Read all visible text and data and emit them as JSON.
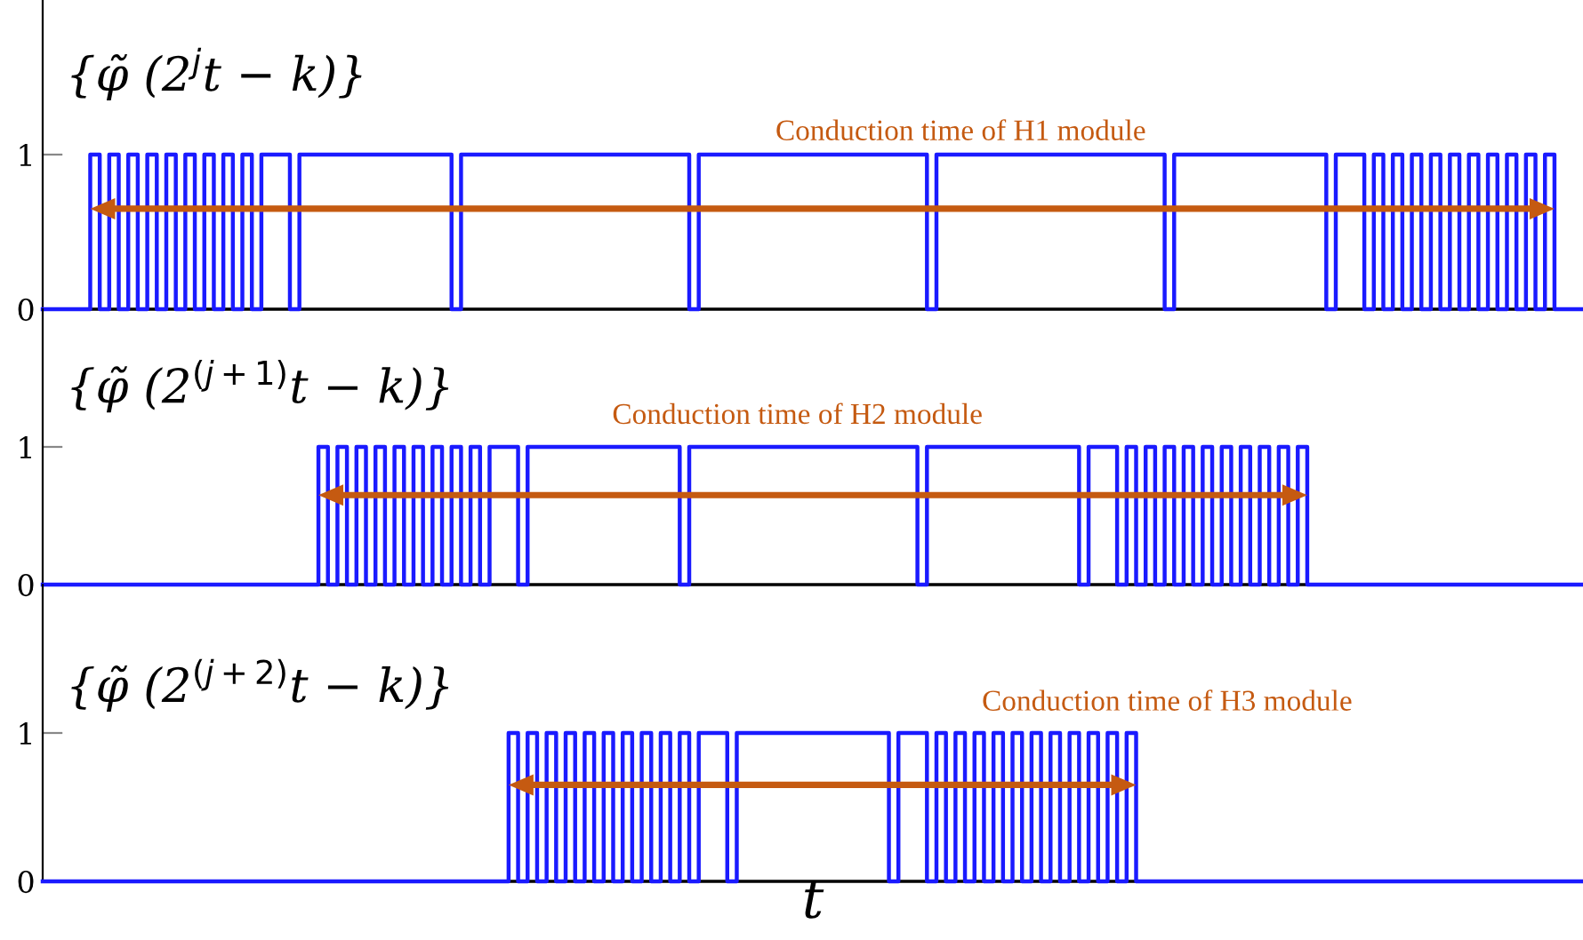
{
  "chart_data": [
    {
      "type": "step",
      "ylim": [
        0,
        2
      ],
      "yticks": [
        0,
        1
      ],
      "tick_labels": "y",
      "grid": false,
      "annotations": [
        "{φ̃ (2$^{j}$t − k)}",
        "Conduction time of H1 module"
      ],
      "categories": [
        null,
        null,
        null,
        null,
        null,
        null,
        null,
        null,
        null,
        null,
        null,
        null,
        null,
        null,
        null,
        null,
        null,
        null,
        null,
        null,
        null,
        null,
        null,
        null,
        null,
        null,
        null,
        null,
        null,
        null,
        null,
        null,
        null,
        null,
        null,
        null,
        null,
        null,
        null,
        null,
        null,
        null,
        null,
        null,
        null,
        null,
        null,
        null,
        null,
        null,
        null,
        null,
        null,
        null,
        null,
        null,
        null,
        null,
        null,
        null,
        null,
        null,
        null,
        null,
        null,
        null,
        null,
        null,
        null,
        null,
        null,
        null,
        null,
        null,
        null,
        null,
        null,
        null,
        null,
        null,
        null,
        null,
        null,
        null,
        null,
        null,
        null,
        null,
        null,
        null,
        null,
        null,
        null,
        null,
        null,
        null,
        null,
        null,
        null,
        null,
        null,
        null,
        null,
        null,
        null,
        null,
        null,
        null,
        null,
        null,
        null,
        null,
        null,
        null,
        null,
        null,
        null,
        null,
        null,
        null,
        null,
        null,
        null,
        null,
        null,
        null,
        null,
        null,
        null,
        null,
        null,
        null,
        null,
        null,
        null,
        null,
        null,
        null,
        null,
        null,
        null,
        null,
        null,
        null,
        null,
        null,
        null,
        null,
        null,
        null,
        null,
        null,
        null,
        null,
        null,
        null,
        null,
        null,
        null,
        null,
        null,
        null,
        null
      ],
      "series": [
        {
          "color": "#1a1aff",
          "values": [
            0,
            0,
            0,
            0,
            0,
            1,
            0,
            1,
            0,
            1,
            0,
            1,
            0,
            1,
            0,
            1,
            0,
            1,
            0,
            1,
            0,
            1,
            0,
            1,
            1,
            1,
            0,
            1,
            1,
            1,
            1,
            1,
            1,
            1,
            1,
            1,
            1,
            1,
            1,
            1,
            1,
            1,
            1,
            0,
            1,
            1,
            1,
            1,
            1,
            1,
            1,
            1,
            1,
            1,
            1,
            1,
            1,
            1,
            1,
            1,
            1,
            1,
            1,
            1,
            1,
            1,
            1,
            1,
            0,
            1,
            1,
            1,
            1,
            1,
            1,
            1,
            1,
            1,
            1,
            1,
            1,
            1,
            1,
            1,
            1,
            1,
            1,
            1,
            1,
            1,
            1,
            1,
            1,
            0,
            1,
            1,
            1,
            1,
            1,
            1,
            1,
            1,
            1,
            1,
            1,
            1,
            1,
            1,
            1,
            1,
            1,
            1,
            1,
            1,
            1,
            1,
            1,
            1,
            0,
            1,
            1,
            1,
            1,
            1,
            1,
            1,
            1,
            1,
            1,
            1,
            1,
            1,
            1,
            1,
            1,
            0,
            1,
            1,
            1,
            0,
            1,
            0,
            1,
            0,
            1,
            0,
            1,
            0,
            1,
            0,
            1,
            0,
            1,
            0,
            1,
            0,
            1,
            0,
            1,
            0,
            0,
            0,
            0
          ]
        }
      ]
    },
    {
      "type": "step",
      "ylim": [
        0,
        2
      ],
      "yticks": [
        0,
        1
      ],
      "tick_labels": "y",
      "grid": false,
      "annotations": [
        "{φ̃ (2$^{(j+1)}$t − k)}",
        "Conduction time of H2 module"
      ],
      "categories": [
        null,
        null,
        null,
        null,
        null,
        null,
        null,
        null,
        null,
        null,
        null,
        null,
        null,
        null,
        null,
        null,
        null,
        null,
        null,
        null,
        null,
        null,
        null,
        null,
        null,
        null,
        null,
        null,
        null,
        null,
        null,
        null,
        null,
        null,
        null,
        null,
        null,
        null,
        null,
        null,
        null,
        null,
        null,
        null,
        null,
        null,
        null,
        null,
        null,
        null,
        null,
        null,
        null,
        null,
        null,
        null,
        null,
        null,
        null,
        null,
        null,
        null,
        null,
        null,
        null,
        null,
        null,
        null,
        null,
        null,
        null,
        null,
        null,
        null,
        null,
        null,
        null,
        null,
        null,
        null,
        null,
        null,
        null,
        null,
        null,
        null,
        null,
        null,
        null,
        null,
        null,
        null,
        null,
        null,
        null,
        null,
        null,
        null,
        null,
        null,
        null,
        null,
        null,
        null,
        null,
        null,
        null,
        null,
        null,
        null,
        null,
        null,
        null,
        null,
        null,
        null,
        null,
        null,
        null,
        null,
        null,
        null,
        null,
        null,
        null,
        null,
        null,
        null,
        null,
        null,
        null,
        null,
        null,
        null,
        null,
        null,
        null,
        null,
        null,
        null,
        null,
        null,
        null,
        null,
        null,
        null,
        null,
        null,
        null,
        null,
        null,
        null,
        null,
        null,
        null,
        null,
        null,
        null,
        null,
        null,
        null,
        null,
        null
      ],
      "series": [
        {
          "color": "#1a1aff",
          "values": [
            0,
            0,
            0,
            0,
            0,
            0,
            0,
            0,
            0,
            0,
            0,
            0,
            0,
            0,
            0,
            0,
            0,
            0,
            0,
            0,
            0,
            0,
            0,
            0,
            0,
            0,
            0,
            0,
            0,
            1,
            0,
            1,
            0,
            1,
            0,
            1,
            0,
            1,
            0,
            1,
            0,
            1,
            0,
            1,
            0,
            1,
            0,
            1,
            1,
            1,
            0,
            1,
            1,
            1,
            1,
            1,
            1,
            1,
            1,
            1,
            1,
            1,
            1,
            1,
            1,
            1,
            1,
            0,
            1,
            1,
            1,
            1,
            1,
            1,
            1,
            1,
            1,
            1,
            1,
            1,
            1,
            1,
            1,
            1,
            1,
            1,
            1,
            1,
            1,
            1,
            1,
            1,
            0,
            1,
            1,
            1,
            1,
            1,
            1,
            1,
            1,
            1,
            1,
            1,
            1,
            1,
            1,
            1,
            1,
            0,
            1,
            1,
            1,
            0,
            1,
            0,
            1,
            0,
            1,
            0,
            1,
            0,
            1,
            0,
            1,
            0,
            1,
            0,
            1,
            0,
            1,
            0,
            1,
            0,
            0,
            0,
            0,
            0,
            0,
            0,
            0,
            0,
            0,
            0,
            0,
            0,
            0,
            0,
            0,
            0,
            0,
            0,
            0,
            0,
            0,
            0,
            0,
            0,
            0,
            0,
            0,
            0,
            0
          ]
        }
      ]
    },
    {
      "type": "step",
      "ylim": [
        0,
        2
      ],
      "yticks": [
        0,
        1
      ],
      "tick_labels": "y",
      "grid": false,
      "xlabel": "t",
      "annotations": [
        "{φ̃ (2$^{(j+2)}$t − k)}",
        "Conduction time of H3 module"
      ],
      "categories": [
        null,
        null,
        null,
        null,
        null,
        null,
        null,
        null,
        null,
        null,
        null,
        null,
        null,
        null,
        null,
        null,
        null,
        null,
        null,
        null,
        null,
        null,
        null,
        null,
        null,
        null,
        null,
        null,
        null,
        null,
        null,
        null,
        null,
        null,
        null,
        null,
        null,
        null,
        null,
        null,
        null,
        null,
        null,
        null,
        null,
        null,
        null,
        null,
        null,
        null,
        null,
        null,
        null,
        null,
        null,
        null,
        null,
        null,
        null,
        null,
        null,
        null,
        null,
        null,
        null,
        null,
        null,
        null,
        null,
        null,
        null,
        null,
        null,
        null,
        null,
        null,
        null,
        null,
        null,
        null,
        null,
        null,
        null,
        null,
        null,
        null,
        null,
        null,
        null,
        null,
        null,
        null,
        null,
        null,
        null,
        null,
        null,
        null,
        null,
        null,
        null,
        null,
        null,
        null,
        null,
        null,
        null,
        null,
        null,
        null,
        null,
        null,
        null,
        null,
        null,
        null,
        null,
        null,
        null,
        null,
        null,
        null,
        null,
        null,
        null,
        null,
        null,
        null,
        null,
        null,
        null,
        null,
        null,
        null,
        null,
        null,
        null,
        null,
        null,
        null,
        null,
        null,
        null,
        null,
        null,
        null,
        null,
        null,
        null,
        null,
        null,
        null,
        null,
        null,
        null,
        null,
        null,
        null,
        null,
        null,
        null,
        null,
        null
      ],
      "series": [
        {
          "color": "#1a1aff",
          "values": [
            0,
            0,
            0,
            0,
            0,
            0,
            0,
            0,
            0,
            0,
            0,
            0,
            0,
            0,
            0,
            0,
            0,
            0,
            0,
            0,
            0,
            0,
            0,
            0,
            0,
            0,
            0,
            0,
            0,
            0,
            0,
            0,
            0,
            0,
            0,
            0,
            0,
            0,
            0,
            0,
            0,
            0,
            0,
            0,
            0,
            0,
            0,
            0,
            0,
            1,
            0,
            1,
            0,
            1,
            0,
            1,
            0,
            1,
            0,
            1,
            0,
            1,
            0,
            1,
            0,
            1,
            0,
            1,
            0,
            1,
            1,
            1,
            0,
            1,
            1,
            1,
            1,
            1,
            1,
            1,
            1,
            1,
            1,
            1,
            1,
            1,
            1,
            1,
            1,
            0,
            1,
            1,
            1,
            0,
            1,
            0,
            1,
            0,
            1,
            0,
            1,
            0,
            1,
            0,
            1,
            0,
            1,
            0,
            1,
            0,
            1,
            0,
            1,
            0,
            1,
            0,
            0,
            0,
            0,
            0,
            0,
            0,
            0,
            0,
            0,
            0,
            0,
            0,
            0,
            0,
            0,
            0,
            0,
            0,
            0,
            0,
            0,
            0,
            0,
            0,
            0,
            0,
            0,
            0,
            0,
            0,
            0,
            0,
            0,
            0,
            0,
            0,
            0,
            0,
            0,
            0,
            0,
            0,
            0,
            0,
            0,
            0,
            0
          ]
        }
      ]
    }
  ]
}
